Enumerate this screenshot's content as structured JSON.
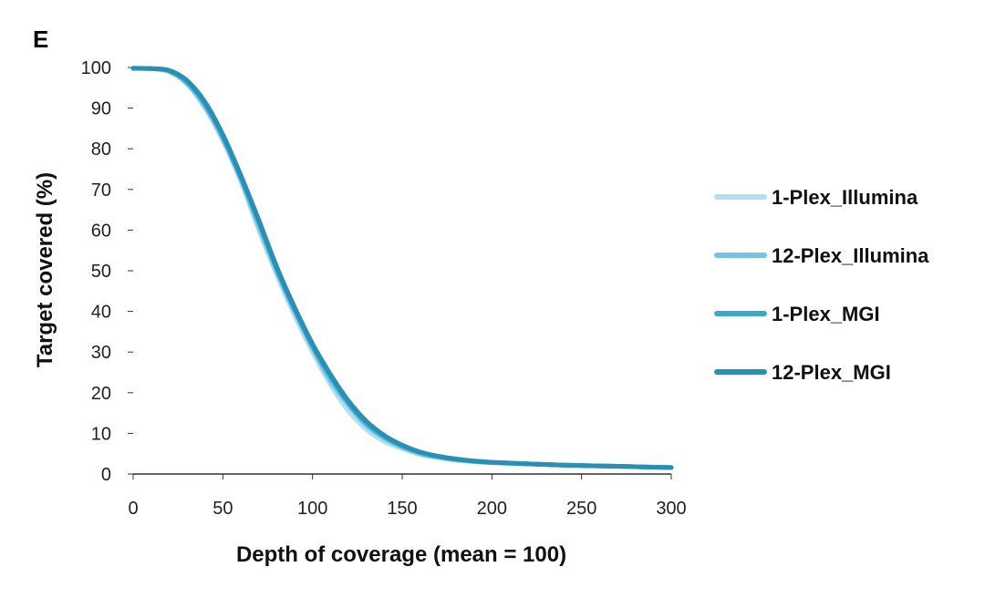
{
  "chart_data": {
    "type": "line",
    "panel_label": "E",
    "xlabel": "Depth of coverage (mean = 100)",
    "ylabel": "Target covered (%)",
    "xlim": [
      0,
      300
    ],
    "ylim": [
      0,
      100
    ],
    "xticks": [
      0,
      50,
      100,
      150,
      200,
      250,
      300
    ],
    "yticks": [
      0,
      10,
      20,
      30,
      40,
      50,
      60,
      70,
      80,
      90,
      100
    ],
    "grid": false,
    "legend_position": "right",
    "x": [
      0,
      10,
      20,
      30,
      40,
      50,
      60,
      70,
      80,
      90,
      100,
      110,
      120,
      130,
      140,
      150,
      160,
      170,
      180,
      190,
      200,
      220,
      240,
      260,
      280,
      300
    ],
    "series": [
      {
        "name": "1-Plex_Illumina",
        "color": "#b3dff0",
        "values": [
          99.8,
          99.7,
          99,
          96,
          90,
          82,
          72,
          60,
          49,
          39,
          30,
          22,
          15.5,
          11,
          8,
          6.2,
          4.8,
          4,
          3.4,
          3,
          2.8,
          2.5,
          2.2,
          2,
          1.8,
          1.6
        ]
      },
      {
        "name": "12-Plex_Illumina",
        "color": "#74c4e4",
        "values": [
          99.8,
          99.7,
          99,
          96,
          90.5,
          82.5,
          72.5,
          61,
          50,
          40,
          31,
          23,
          17,
          12,
          8.8,
          6.6,
          5,
          4.1,
          3.5,
          3.1,
          2.8,
          2.5,
          2.2,
          2,
          1.8,
          1.6
        ]
      },
      {
        "name": "1-Plex_MGI",
        "color": "#3aa9d2",
        "values": [
          99.8,
          99.7,
          99.2,
          96.5,
          91,
          83,
          73,
          62,
          50.5,
          40.5,
          31.5,
          24,
          17.5,
          12.5,
          9.2,
          6.9,
          5.3,
          4.3,
          3.6,
          3.2,
          2.9,
          2.5,
          2.2,
          2,
          1.8,
          1.6
        ]
      },
      {
        "name": "12-Plex_MGI",
        "color": "#2a8fb4",
        "values": [
          99.8,
          99.7,
          99.3,
          96.8,
          91.5,
          83.5,
          73.5,
          62.5,
          51,
          41,
          32,
          24.5,
          18,
          13,
          9.5,
          7.1,
          5.4,
          4.4,
          3.7,
          3.2,
          2.9,
          2.5,
          2.2,
          2,
          1.8,
          1.6
        ]
      }
    ]
  }
}
